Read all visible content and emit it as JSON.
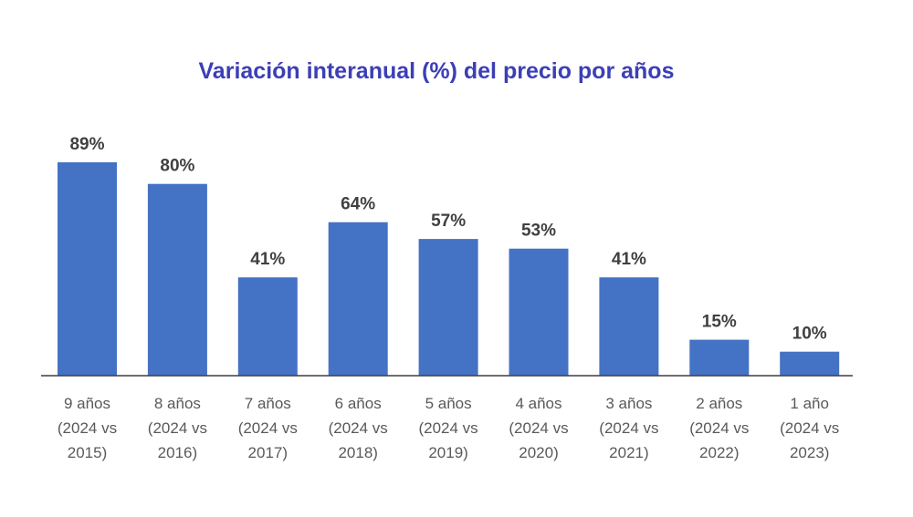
{
  "chart_data": {
    "type": "bar",
    "title": "Variación interanual (%) del precio por años",
    "xlabel": "",
    "ylabel": "",
    "ylim": [
      0,
      89
    ],
    "grid": false,
    "legend": "none",
    "value_suffix": "%",
    "colors": {
      "bar": "#4472c4",
      "title": "#3c3fb5",
      "data_label": "#404040",
      "tick_label": "#595959",
      "axis": "#3f3f3f"
    },
    "categories": [
      [
        "9 años",
        "(2024 vs",
        "2015)"
      ],
      [
        "8 años",
        "(2024 vs",
        "2016)"
      ],
      [
        "7 años",
        "(2024 vs",
        "2017)"
      ],
      [
        "6 años",
        "(2024 vs",
        "2018)"
      ],
      [
        "5 años",
        "(2024 vs",
        "2019)"
      ],
      [
        "4 años",
        "(2024 vs",
        "2020)"
      ],
      [
        "3 años",
        "(2024 vs",
        "2021)"
      ],
      [
        "2 años",
        "(2024 vs",
        "2022)"
      ],
      [
        "1 año",
        "(2024 vs",
        "2023)"
      ]
    ],
    "values": [
      89,
      80,
      41,
      64,
      57,
      53,
      41,
      15,
      10
    ]
  }
}
